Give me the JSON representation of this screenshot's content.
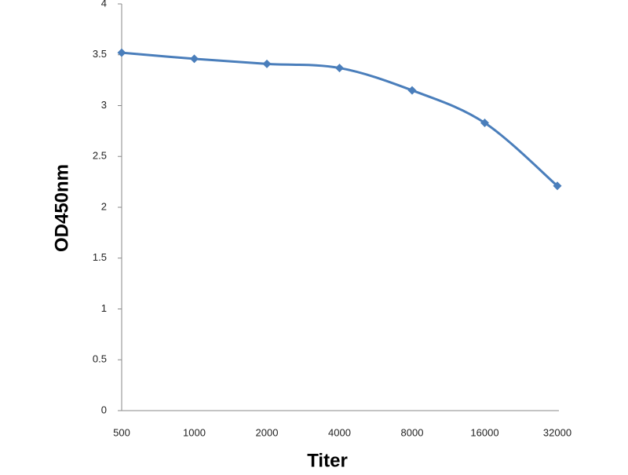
{
  "chart_data": {
    "type": "line",
    "xlabel": "Titer",
    "ylabel": "OD450nm",
    "categories": [
      "500",
      "1000",
      "2000",
      "4000",
      "8000",
      "16000",
      "32000"
    ],
    "series": [
      {
        "name": "OD450nm",
        "color": "#4a7ebb",
        "values": [
          3.52,
          3.46,
          3.41,
          3.37,
          3.15,
          2.83,
          2.21
        ]
      }
    ],
    "ylim": [
      0,
      4
    ],
    "yticks": [
      0,
      0.5,
      1,
      1.5,
      2,
      2.5,
      3,
      3.5,
      4
    ],
    "grid": false,
    "legend": false
  }
}
